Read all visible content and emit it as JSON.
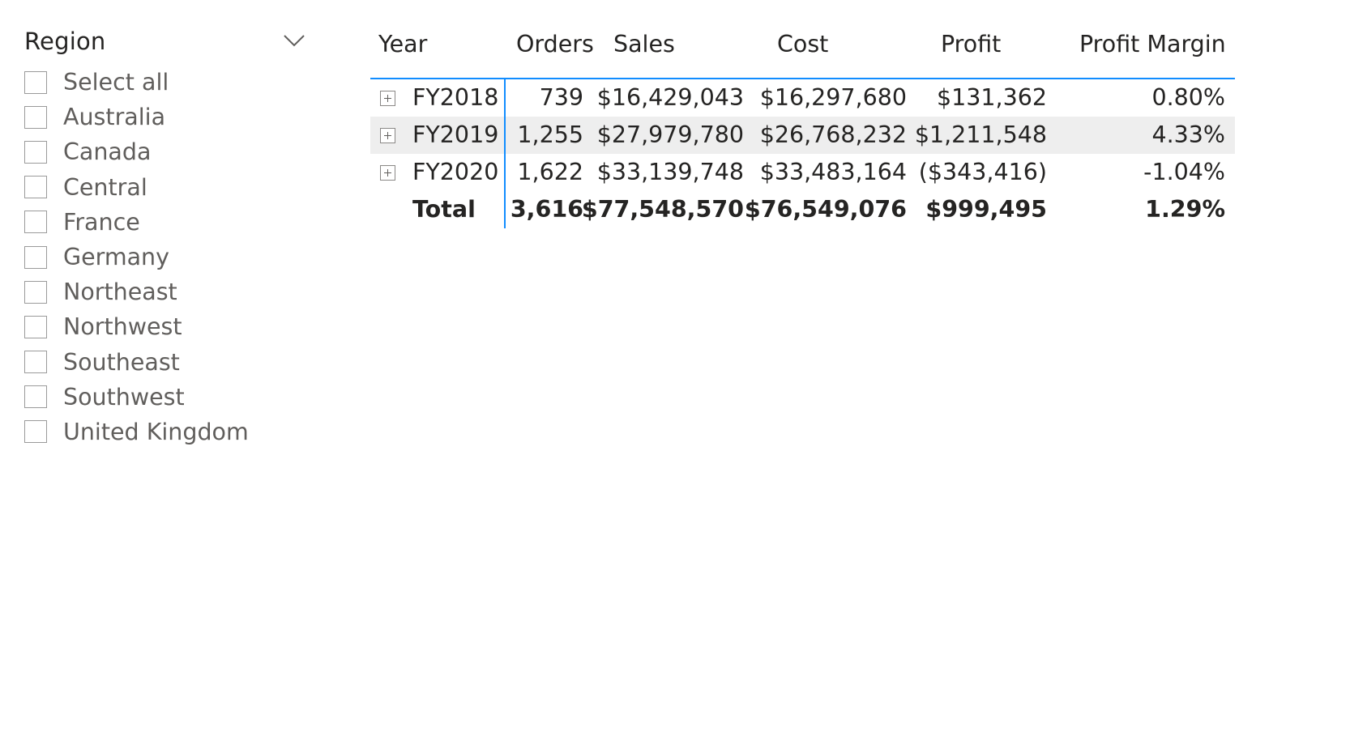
{
  "slicer": {
    "title": "Region",
    "items": [
      {
        "label": "Select all"
      },
      {
        "label": "Australia"
      },
      {
        "label": "Canada"
      },
      {
        "label": "Central"
      },
      {
        "label": "France"
      },
      {
        "label": "Germany"
      },
      {
        "label": "Northeast"
      },
      {
        "label": "Northwest"
      },
      {
        "label": "Southeast"
      },
      {
        "label": "Southwest"
      },
      {
        "label": "United Kingdom"
      }
    ]
  },
  "matrix": {
    "columns": [
      "Year",
      "Orders",
      "Sales",
      "Cost",
      "Profit",
      "Profit Margin"
    ],
    "rows": [
      {
        "year": "FY2018",
        "orders": "739",
        "sales": "$16,429,043",
        "cost": "$16,297,680",
        "profit": "$131,362",
        "margin": "0.80%"
      },
      {
        "year": "FY2019",
        "orders": "1,255",
        "sales": "$27,979,780",
        "cost": "$26,768,232",
        "profit": "$1,211,548",
        "margin": "4.33%"
      },
      {
        "year": "FY2020",
        "orders": "1,622",
        "sales": "$33,139,748",
        "cost": "$33,483,164",
        "profit": "($343,416)",
        "margin": "-1.04%"
      }
    ],
    "total": {
      "label": "Total",
      "orders": "3,616",
      "sales": "$77,548,570",
      "cost": "$76,549,076",
      "profit": "$999,495",
      "margin": "1.29%"
    }
  },
  "icons": {
    "dropdown": "chevron-down-icon",
    "expand": "expand-plus-icon"
  },
  "colors": {
    "accent": "#118dff",
    "hover_row": "#eeeeee",
    "checkbox_border": "#9a9a9a"
  }
}
